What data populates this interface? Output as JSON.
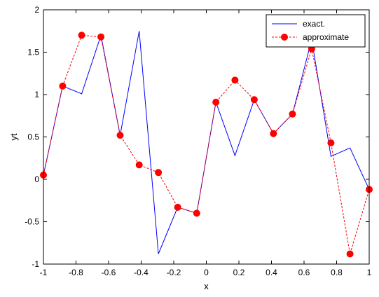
{
  "chart_data": {
    "type": "line",
    "xlabel": "x",
    "ylabel": "yt",
    "xlim": [
      -1,
      1
    ],
    "ylim": [
      -1,
      2
    ],
    "xticks": [
      -1,
      -0.8,
      -0.6,
      -0.4,
      -0.2,
      0,
      0.2,
      0.4,
      0.6,
      0.8,
      1
    ],
    "xtick_labels": [
      "-1",
      "-0.8",
      "-0.6",
      "-0.4",
      "-0.2",
      "0",
      "0.2",
      "0.4",
      "0.6",
      "0.8",
      "1"
    ],
    "yticks": [
      -1,
      -0.5,
      0,
      0.5,
      1,
      1.5,
      2
    ],
    "ytick_labels": [
      "-1",
      "-0.5",
      "0",
      "0.5",
      "1",
      "1.5",
      "2"
    ],
    "grid": false,
    "legend_position": "top-right",
    "series": [
      {
        "name": "exact.",
        "color": "#0000ff",
        "style": "solid",
        "marker": "none",
        "x": [
          -1.0,
          -0.882,
          -0.765,
          -0.647,
          -0.529,
          -0.412,
          -0.294,
          -0.176,
          -0.059,
          0.059,
          0.176,
          0.294,
          0.412,
          0.529,
          0.647,
          0.765,
          0.882,
          1.0
        ],
        "y": [
          0.05,
          1.1,
          1.01,
          1.7,
          0.52,
          1.75,
          -0.88,
          -0.33,
          -0.4,
          0.91,
          0.28,
          0.94,
          0.54,
          0.77,
          1.65,
          0.27,
          0.37,
          -0.12
        ]
      },
      {
        "name": "approximate",
        "color": "#ff0000",
        "style": "dashed",
        "marker": "circle",
        "x": [
          -1.0,
          -0.882,
          -0.765,
          -0.647,
          -0.529,
          -0.412,
          -0.294,
          -0.176,
          -0.059,
          0.059,
          0.176,
          0.294,
          0.412,
          0.529,
          0.647,
          0.765,
          0.882,
          1.0
        ],
        "y": [
          0.05,
          1.1,
          1.7,
          1.68,
          0.52,
          0.17,
          0.08,
          -0.33,
          -0.4,
          0.91,
          1.17,
          0.94,
          0.54,
          0.77,
          1.54,
          0.43,
          -0.88,
          -0.12
        ]
      }
    ]
  }
}
